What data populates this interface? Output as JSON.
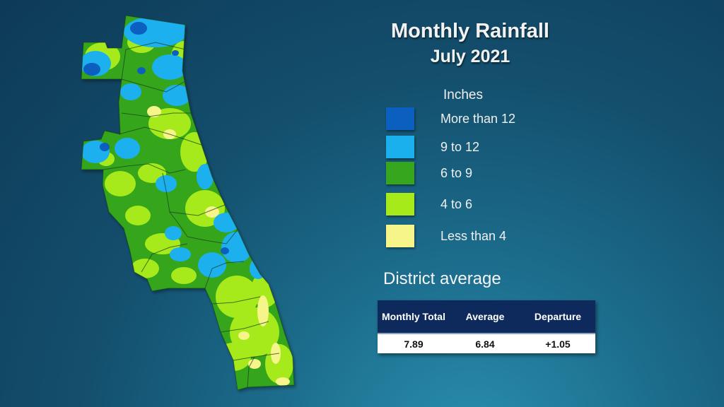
{
  "title": "Monthly Rainfall",
  "subtitle": "July 2021",
  "legend": {
    "heading": "Inches",
    "items": [
      {
        "label": "More than 12",
        "color": "#0a5fbf"
      },
      {
        "label": "9 to 12",
        "color": "#1ab0ee"
      },
      {
        "label": "6 to 9",
        "color": "#35a61e"
      },
      {
        "label": "4 to 6",
        "color": "#a6ea1a"
      },
      {
        "label": "Less than 4",
        "color": "#f5f58a"
      }
    ]
  },
  "district": {
    "heading": "District average",
    "columns": [
      "Monthly Total",
      "Average",
      "Departure"
    ],
    "values": [
      "7.89",
      "6.84",
      "+1.05"
    ]
  }
}
